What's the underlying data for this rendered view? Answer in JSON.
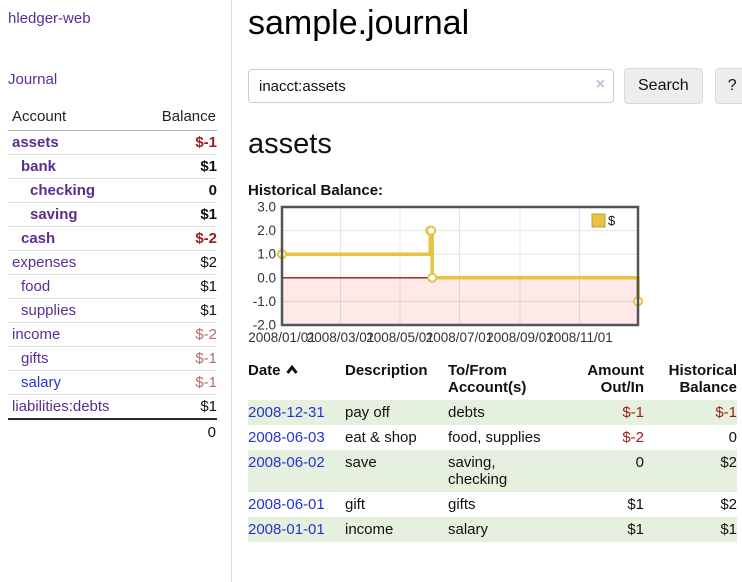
{
  "colors": {
    "purple_link": "#5c2d91",
    "blue_link": "#2533d4",
    "negative": "#9b1c1c",
    "negative_muted": "#b36a6a",
    "row_green": "#e6f0df",
    "sidebar_border": "#dcdcdc",
    "button_bg": "#ededed"
  },
  "sidebar": {
    "app_title": "hledger-web",
    "journal_link": "Journal",
    "accounts_table": {
      "headers": {
        "account": "Account",
        "balance": "Balance"
      },
      "rows": [
        {
          "account": "assets",
          "level": 1,
          "bold": true,
          "balance": "$-1",
          "negative": true,
          "link_color": "purple"
        },
        {
          "account": "bank",
          "level": 2,
          "bold": true,
          "balance": "$1",
          "negative": false,
          "link_color": "purple"
        },
        {
          "account": "checking",
          "level": 3,
          "bold": true,
          "balance": "0",
          "negative": false,
          "link_color": "purple"
        },
        {
          "account": "saving",
          "level": 3,
          "bold": true,
          "balance": "$1",
          "negative": false,
          "link_color": "purple"
        },
        {
          "account": "cash",
          "level": 2,
          "bold": true,
          "balance": "$-2",
          "negative": true,
          "link_color": "purple"
        },
        {
          "account": "expenses",
          "level": 1,
          "bold": false,
          "balance": "$2",
          "negative": false,
          "link_color": "purple"
        },
        {
          "account": "food",
          "level": 2,
          "bold": false,
          "balance": "$1",
          "negative": false,
          "link_color": "purple"
        },
        {
          "account": "supplies",
          "level": 2,
          "bold": false,
          "balance": "$1",
          "negative": false,
          "link_color": "purple"
        },
        {
          "account": "income",
          "level": 1,
          "bold": false,
          "balance": "$-2",
          "negative": true,
          "link_color": "purple"
        },
        {
          "account": "gifts",
          "level": 2,
          "bold": false,
          "balance": "$-1",
          "negative": true,
          "link_color": "purple"
        },
        {
          "account": "salary",
          "level": 2,
          "bold": false,
          "balance": "$-1",
          "negative": true,
          "link_color": "blue"
        },
        {
          "account": "liabilities:debts",
          "level": 1,
          "bold": false,
          "balance": "$1",
          "negative": false,
          "link_color": "purple"
        }
      ],
      "total": "0"
    }
  },
  "header": {
    "title": "sample.journal"
  },
  "search": {
    "value": "inacct:assets",
    "clear_icon": "×",
    "search_button": "Search",
    "help_button": "?"
  },
  "account_page": {
    "title": "assets",
    "chart_label": "Historical Balance:"
  },
  "chart_data": {
    "type": "line",
    "title": "Historical Balance",
    "step": true,
    "series": [
      {
        "name": "$",
        "color": "#e8c33f",
        "points": [
          [
            "2008-01-01",
            1
          ],
          [
            "2008-06-01",
            2
          ],
          [
            "2008-06-02",
            2
          ],
          [
            "2008-06-03",
            0
          ],
          [
            "2008-12-31",
            -1
          ]
        ]
      }
    ],
    "x_range": [
      "2008-01-01",
      "2008-12-31"
    ],
    "ylim": [
      -2,
      3
    ],
    "y_ticks": [
      3.0,
      2.0,
      1.0,
      0.0,
      -1.0,
      -2.0
    ],
    "x_ticks": [
      {
        "date": "2008-01-01",
        "label": "2008/01/01"
      },
      {
        "date": "2008-03-01",
        "label": "2008/03/01"
      },
      {
        "date": "2008-05-01",
        "label": "2008/05/01"
      },
      {
        "date": "2008-07-01",
        "label": "2008/07/01"
      },
      {
        "date": "2008-09-01",
        "label": "2008/09/01"
      },
      {
        "date": "2008-11-01",
        "label": "2008/11/01"
      }
    ],
    "grid": true,
    "legend_position": "top-right",
    "legend_label": "$",
    "zero_line_color": "#8b1a1a",
    "negative_region_fill": "rgba(255,0,0,0.09)"
  },
  "register_table": {
    "headers": {
      "date": "Date",
      "description": "Description",
      "accounts": "To/From Account(s)",
      "amount": "Amount Out/In",
      "balance": "Historical Balance"
    },
    "sort": "ascending",
    "rows": [
      {
        "date": "2008-12-31",
        "description": "pay off",
        "accounts": "debts",
        "amount": "$-1",
        "amount_negative": true,
        "balance": "$-1",
        "balance_negative": true
      },
      {
        "date": "2008-06-03",
        "description": "eat & shop",
        "accounts": "food, supplies",
        "amount": "$-2",
        "amount_negative": true,
        "balance": "0",
        "balance_negative": false
      },
      {
        "date": "2008-06-02",
        "description": "save",
        "accounts": "saving, checking",
        "amount": "0",
        "amount_negative": false,
        "balance": "$2",
        "balance_negative": false
      },
      {
        "date": "2008-06-01",
        "description": "gift",
        "accounts": "gifts",
        "amount": "$1",
        "amount_negative": false,
        "balance": "$2",
        "balance_negative": false
      },
      {
        "date": "2008-01-01",
        "description": "income",
        "accounts": "salary",
        "amount": "$1",
        "amount_negative": false,
        "balance": "$1",
        "balance_negative": false
      }
    ]
  }
}
